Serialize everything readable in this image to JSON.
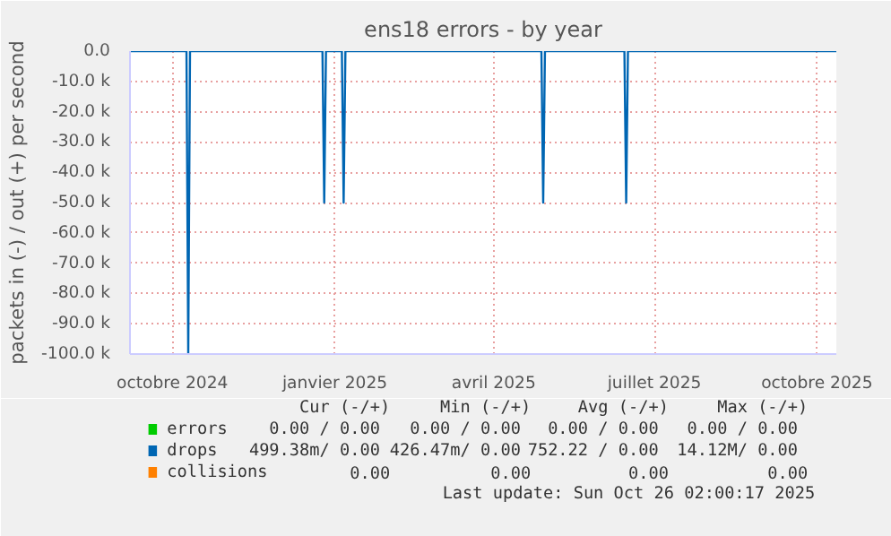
{
  "chart_data": {
    "type": "line",
    "title": "ens18 errors - by year",
    "ylabel": "packets in (-) / out (+) per second",
    "xlim": [
      "2024-09-07",
      "2025-10-12"
    ],
    "ylim": [
      -100000,
      0
    ],
    "xticks": [
      {
        "value": "2024-10-01",
        "label": "octobre 2024"
      },
      {
        "value": "2025-01-01",
        "label": "janvier 2025"
      },
      {
        "value": "2025-04-01",
        "label": "avril 2025"
      },
      {
        "value": "2025-07-01",
        "label": "juillet 2025"
      },
      {
        "value": "2025-10-01",
        "label": "octobre 2025"
      }
    ],
    "yticks": [
      {
        "value": 0,
        "label": "0.0"
      },
      {
        "value": -10000,
        "label": "-10.0 k"
      },
      {
        "value": -20000,
        "label": "-20.0 k"
      },
      {
        "value": -30000,
        "label": "-30.0 k"
      },
      {
        "value": -40000,
        "label": "-40.0 k"
      },
      {
        "value": -50000,
        "label": "-50.0 k"
      },
      {
        "value": -60000,
        "label": "-60.0 k"
      },
      {
        "value": -70000,
        "label": "-70.0 k"
      },
      {
        "value": -80000,
        "label": "-80.0 k"
      },
      {
        "value": -90000,
        "label": "-90.0 k"
      },
      {
        "value": -100000,
        "label": "-100.0 k"
      }
    ],
    "grid": true,
    "legend": "bottom",
    "series": [
      {
        "name": "errors",
        "color": "#00cc00"
      },
      {
        "name": "drops",
        "color": "#0066b3",
        "x": [
          "2024-09-07",
          "2024-10-09",
          "2024-10-10",
          "2024-10-11",
          "2024-12-25",
          "2024-12-26",
          "2024-12-27",
          "2025-01-05",
          "2025-01-06",
          "2025-01-07",
          "2025-04-28",
          "2025-04-29",
          "2025-04-30",
          "2025-06-14",
          "2025-06-15",
          "2025-06-16",
          "2025-10-12"
        ],
        "values": [
          0,
          0,
          -100000,
          0,
          0,
          -50000,
          0,
          0,
          -50000,
          0,
          0,
          -50000,
          0,
          0,
          -50000,
          0,
          0
        ]
      },
      {
        "name": "collisions",
        "color": "#ff8000"
      }
    ],
    "annotations": [
      "Cur (-/+)",
      "Min (-/+)",
      "Avg (-/+)",
      "Max (-/+)",
      "0.00 /  0.00",
      "0.00 /  0.00",
      "0.00 /  0.00",
      "0.00 /  0.00",
      "499.38m/  0.00",
      "426.47m/  0.00",
      "752.22 /  0.00",
      "14.12M/  0.00",
      "0.00",
      "0.00",
      "0.00",
      "0.00",
      "Last update: Sun Oct 26 02:00:17 2025"
    ]
  }
}
